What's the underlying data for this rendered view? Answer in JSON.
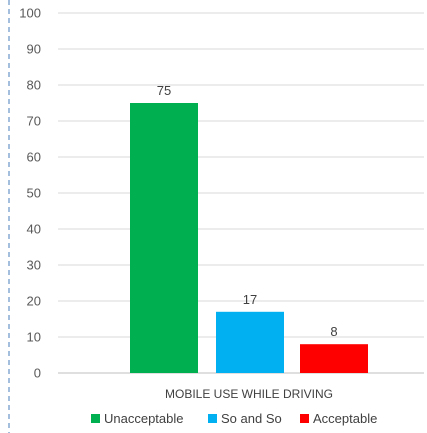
{
  "chart_data": {
    "type": "bar",
    "categories": [
      "MOBILE USE WHILE DRIVING"
    ],
    "series": [
      {
        "name": "Unacceptable",
        "values": [
          75
        ],
        "color": "#00B050"
      },
      {
        "name": "So and So",
        "values": [
          17
        ],
        "color": "#00B0F0"
      },
      {
        "name": "Acceptable",
        "values": [
          8
        ],
        "color": "#FF0000"
      }
    ],
    "xlabel": "MOBILE USE WHILE DRIVING",
    "ylabel": "",
    "ylim": [
      0,
      100
    ],
    "yticks": [
      "0",
      "10",
      "20",
      "30",
      "40",
      "50",
      "60",
      "70",
      "80",
      "90",
      "100"
    ],
    "data_labels": [
      "75",
      "17",
      "8"
    ],
    "grid": true,
    "legend": "bottom"
  }
}
